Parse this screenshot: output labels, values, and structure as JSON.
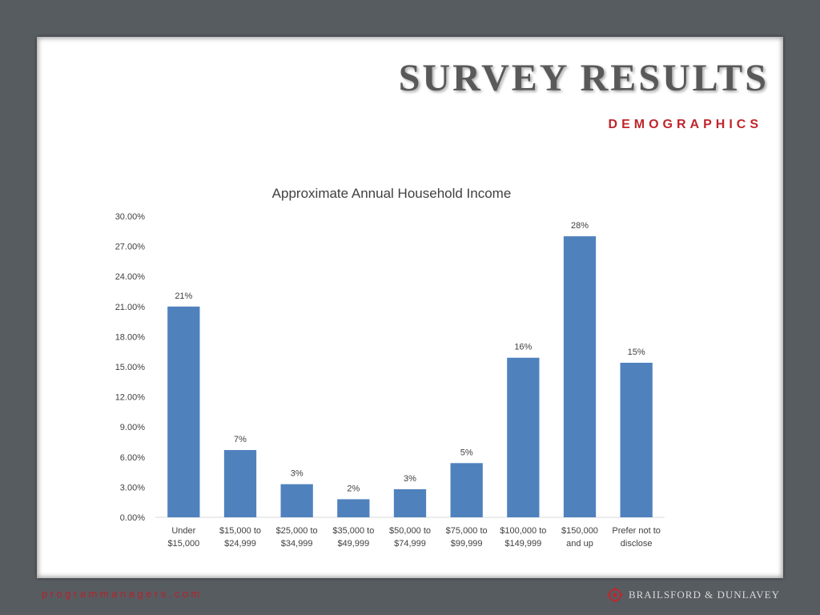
{
  "slide": {
    "title": "SURVEY RESULTS",
    "subtitle": "DEMOGRAPHICS"
  },
  "footer": {
    "url": "programmanagers.com",
    "brand": "BRAILSFORD & DUNLAVEY",
    "brand_logo_icon": "compass-rose-icon"
  },
  "colors": {
    "background": "#575c61",
    "bar": "#4f81bd",
    "accent_red": "#c0262c",
    "title_gray": "#595959"
  },
  "chart_data": {
    "type": "bar",
    "title": "Approximate Annual Household Income",
    "categories": [
      [
        "Under",
        "$15,000"
      ],
      [
        "$15,000 to",
        "$24,999"
      ],
      [
        "$25,000 to",
        "$34,999"
      ],
      [
        "$35,000 to",
        "$49,999"
      ],
      [
        "$50,000 to",
        "$74,999"
      ],
      [
        "$75,000 to",
        "$99,999"
      ],
      [
        "$100,000 to",
        "$149,999"
      ],
      [
        "$150,000",
        "and up"
      ],
      [
        "Prefer not to",
        "disclose"
      ]
    ],
    "values": [
      21.0,
      6.7,
      3.3,
      1.8,
      2.8,
      5.4,
      15.9,
      28.0,
      15.4
    ],
    "data_labels": [
      "21%",
      "7%",
      "3%",
      "2%",
      "3%",
      "5%",
      "16%",
      "28%",
      "15%"
    ],
    "yticks": [
      "0.00%",
      "3.00%",
      "6.00%",
      "9.00%",
      "12.00%",
      "15.00%",
      "18.00%",
      "21.00%",
      "24.00%",
      "27.00%",
      "30.00%"
    ],
    "ylim": [
      0,
      30
    ],
    "ytick_step": 3,
    "grid": false,
    "legend": "none"
  }
}
